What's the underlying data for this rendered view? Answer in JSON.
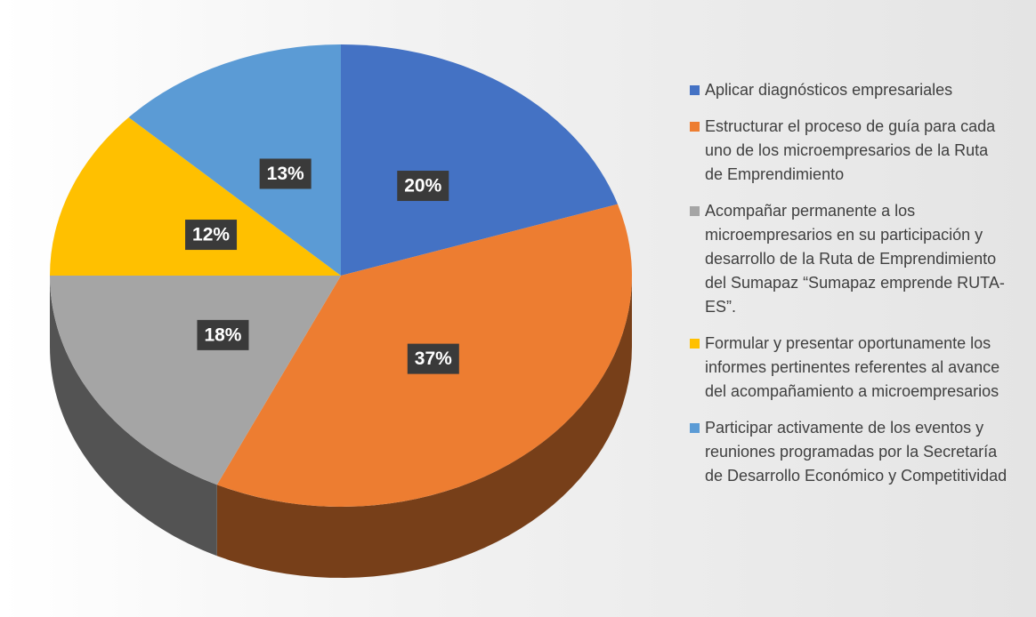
{
  "chart_data": {
    "type": "pie",
    "categories": [
      "Aplicar diagnósticos empresariales",
      "Estructurar el proceso de guía para cada uno de los microempresarios de la Ruta de Emprendimiento",
      "Acompañar permanente a los microempresarios en su participación y desarrollo de la Ruta de Emprendimiento del Sumapaz “Sumapaz emprende RUTA-ES”.",
      "Formular y presentar oportunamente los informes pertinentes referentes al avance del acompañamiento a microempresarios",
      "Participar activamente de los eventos y reuniones programadas por la Secretaría de Desarrollo Económico y Competitividad"
    ],
    "values": [
      20,
      37,
      18,
      12,
      13
    ],
    "value_labels": [
      "20%",
      "37%",
      "18%",
      "12%",
      "13%"
    ],
    "colors": [
      "#4472c4",
      "#ed7d31",
      "#a5a5a5",
      "#ffc000",
      "#5b9bd5"
    ],
    "legend": "right"
  }
}
